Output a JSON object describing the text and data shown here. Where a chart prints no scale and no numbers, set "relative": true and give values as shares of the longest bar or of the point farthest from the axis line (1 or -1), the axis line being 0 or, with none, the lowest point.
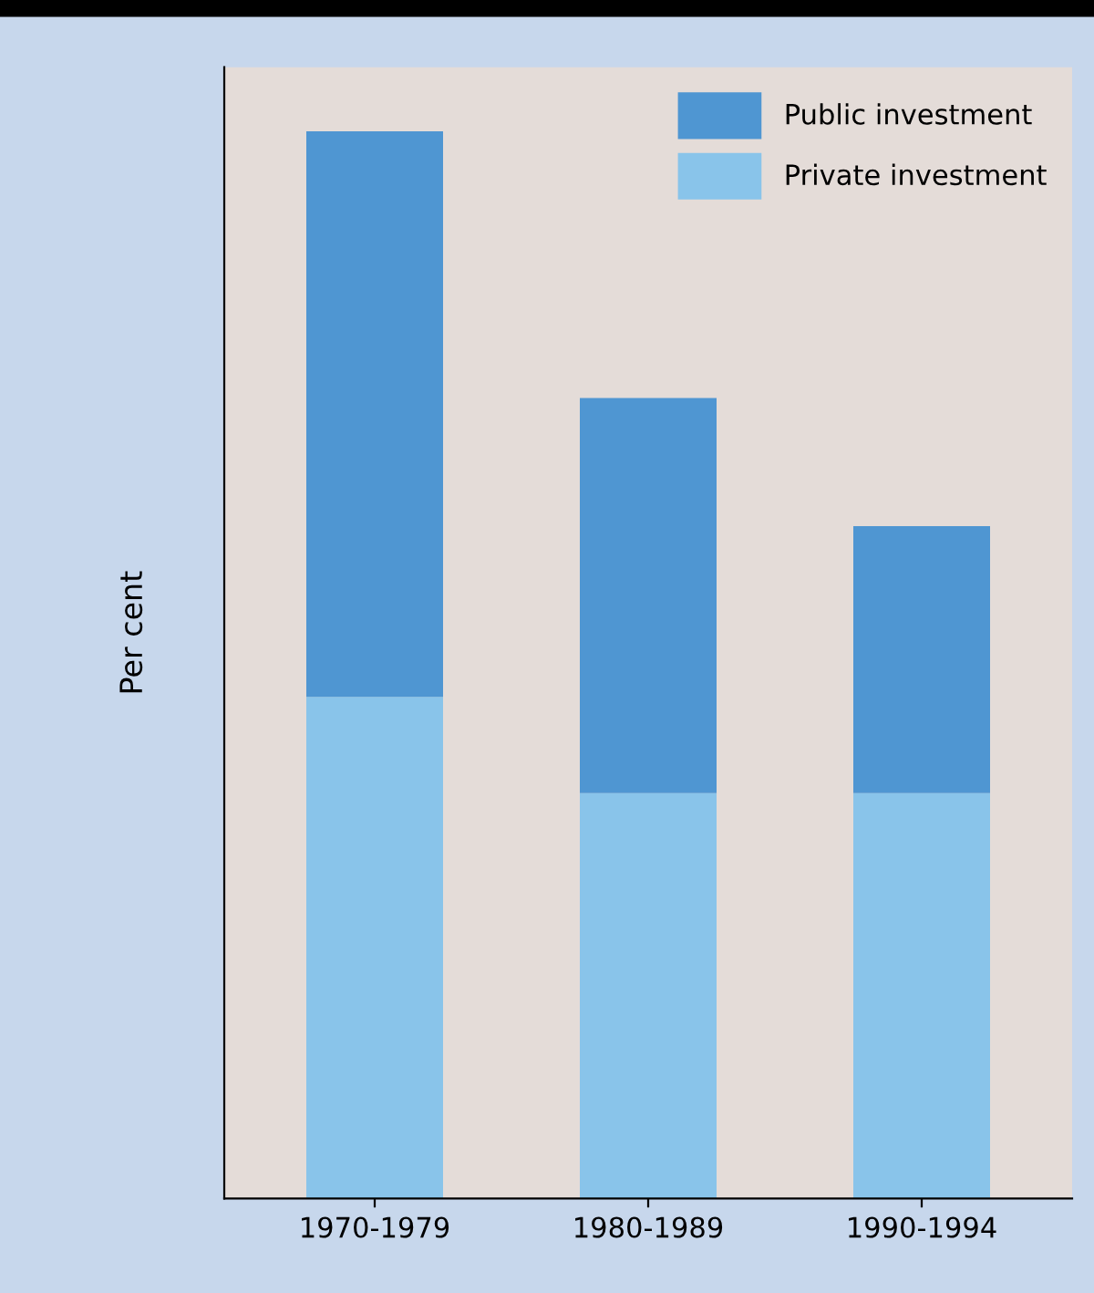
{
  "chart_data": {
    "type": "bar",
    "ylabel": "Per cent",
    "categories": [
      "1970-1979",
      "1980-1989",
      "1990-1994"
    ],
    "relative": true,
    "stacked": true,
    "legend": "top right",
    "series": [
      {
        "name": "Private investment",
        "color": "#89c4ea",
        "values": [
          0.47,
          0.38,
          0.38
        ]
      },
      {
        "name": "Public investment",
        "color": "#4f96d2",
        "values": [
          0.53,
          0.37,
          0.25
        ]
      }
    ]
  }
}
